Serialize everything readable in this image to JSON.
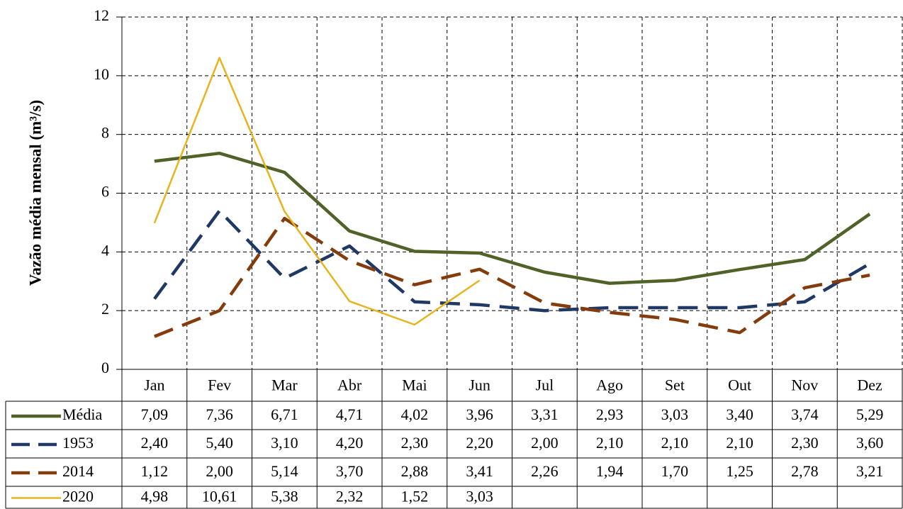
{
  "chart_data": {
    "type": "line",
    "y_label": "Vazão média mensal (m³/s)",
    "categories": [
      "Jan",
      "Fev",
      "Mar",
      "Abr",
      "Mai",
      "Jun",
      "Jul",
      "Ago",
      "Set",
      "Out",
      "Nov",
      "Dez"
    ],
    "series": [
      {
        "name": "Média",
        "color": "#4f6228",
        "line_style": "solid",
        "values": [
          7.09,
          7.36,
          6.71,
          4.71,
          4.02,
          3.96,
          3.31,
          2.93,
          3.03,
          3.4,
          3.74,
          5.29
        ],
        "value_labels": [
          "7,09",
          "7,36",
          "6,71",
          "4,71",
          "4,02",
          "3,96",
          "3,31",
          "2,93",
          "3,03",
          "3,40",
          "3,74",
          "5,29"
        ]
      },
      {
        "name": "1953",
        "color": "#1f3864",
        "line_style": "dashed",
        "values": [
          2.4,
          5.4,
          3.1,
          4.2,
          2.3,
          2.2,
          2.0,
          2.1,
          2.1,
          2.1,
          2.3,
          3.6
        ],
        "value_labels": [
          "2,40",
          "5,40",
          "3,10",
          "4,20",
          "2,30",
          "2,20",
          "2,00",
          "2,10",
          "2,10",
          "2,10",
          "2,30",
          "3,60"
        ]
      },
      {
        "name": "2014",
        "color": "#843c0c",
        "line_style": "dashed",
        "values": [
          1.12,
          2.0,
          5.14,
          3.7,
          2.88,
          3.41,
          2.26,
          1.94,
          1.7,
          1.25,
          2.78,
          3.21
        ],
        "value_labels": [
          "1,12",
          "2,00",
          "5,14",
          "3,70",
          "2,88",
          "3,41",
          "2,26",
          "1,94",
          "1,70",
          "1,25",
          "2,78",
          "3,21"
        ]
      },
      {
        "name": "2020",
        "color": "#e6b41e",
        "line_style": "thin",
        "values": [
          4.98,
          10.61,
          5.38,
          2.32,
          1.52,
          3.03,
          null,
          null,
          null,
          null,
          null,
          null
        ],
        "value_labels": [
          "4,98",
          "10,61",
          "5,38",
          "2,32",
          "1,52",
          "3,03",
          null,
          null,
          null,
          null,
          null,
          null
        ]
      }
    ],
    "ylim": [
      0,
      12
    ],
    "yticks": [
      0,
      2,
      4,
      6,
      8,
      10,
      12
    ],
    "grid": true
  }
}
